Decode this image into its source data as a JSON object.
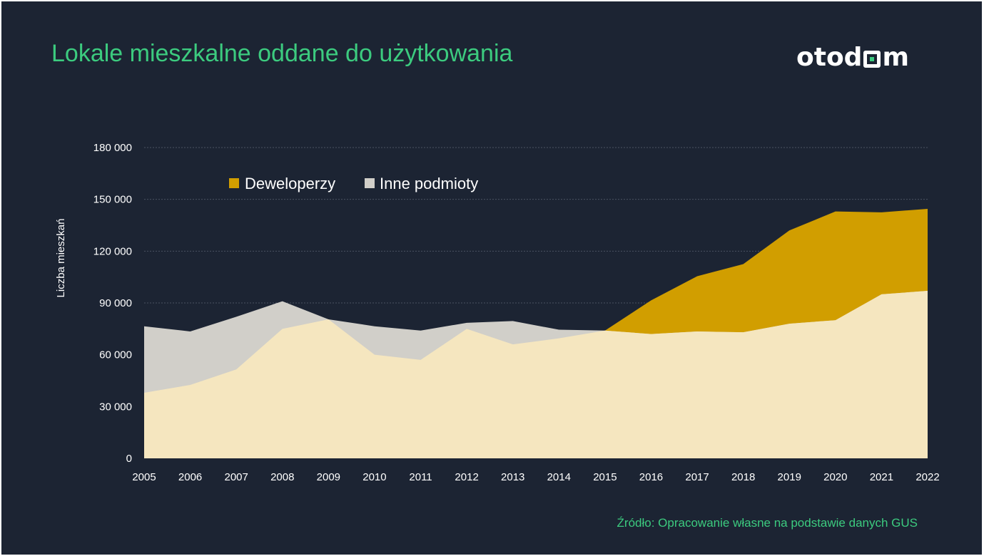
{
  "title": "Lokale mieszkalne oddane do użytkowania",
  "logo": {
    "text_before": "otod",
    "text_after": "m",
    "icon": "house-square-icon",
    "accent_color": "#3ccb7f"
  },
  "source": "Źródło: Opracowanie własne na podstawie danych GUS",
  "colors": {
    "background": "#1c2433",
    "title": "#3ccb7f",
    "deweloperzy": "#d19e00",
    "inne_podmioty": "#d1cfc9",
    "base_area": "#f5e6bf"
  },
  "chart_data": {
    "type": "area",
    "title": "Lokale mieszkalne oddane do użytkowania",
    "xlabel": "",
    "ylabel": "Liczba mieszkań",
    "x": [
      2005,
      2006,
      2007,
      2008,
      2009,
      2010,
      2011,
      2012,
      2013,
      2014,
      2015,
      2016,
      2017,
      2018,
      2019,
      2020,
      2021,
      2022
    ],
    "x_tick_labels": [
      "2005",
      "2006",
      "2007",
      "2008",
      "2009",
      "2010",
      "2011",
      "2012",
      "2013",
      "2014",
      "2015",
      "2016",
      "2017",
      "2018",
      "2019",
      "2020",
      "2021",
      "2022"
    ],
    "ylim": [
      0,
      180000
    ],
    "y_ticks": [
      0,
      30000,
      60000,
      90000,
      120000,
      150000,
      180000
    ],
    "y_tick_labels": [
      "0",
      "30 000",
      "60 000",
      "90 000",
      "120 000",
      "150 000",
      "180 000"
    ],
    "grid": true,
    "legend_position": "top-left",
    "series": [
      {
        "name": "Deweloperzy",
        "color": "#d19e00",
        "values": [
          38000,
          42500,
          51500,
          75000,
          80500,
          60000,
          57000,
          75000,
          66000,
          69500,
          74000,
          91500,
          105500,
          112500,
          132000,
          143000,
          142500,
          144500
        ]
      },
      {
        "name": "Inne podmioty",
        "color": "#d1cfc9",
        "values": [
          76500,
          73500,
          82000,
          91000,
          80500,
          76500,
          74000,
          78500,
          79500,
          74500,
          74000,
          72000,
          73500,
          73000,
          78000,
          80000,
          95000,
          97000
        ]
      }
    ]
  }
}
